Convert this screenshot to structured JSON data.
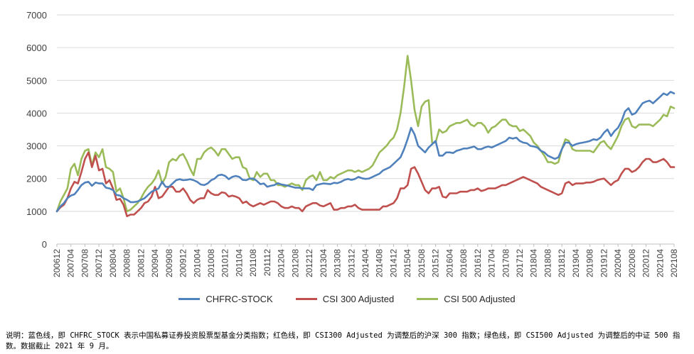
{
  "chart_data": {
    "type": "line",
    "title": "",
    "xlabel": "",
    "ylabel": "",
    "ylim": [
      0,
      7000
    ],
    "yticks": [
      0,
      1000,
      2000,
      3000,
      4000,
      5000,
      6000,
      7000
    ],
    "x_tick_labels": [
      "200612",
      "200704",
      "200708",
      "200712",
      "200804",
      "200808",
      "200812",
      "200904",
      "200908",
      "200912",
      "201004",
      "201008",
      "201012",
      "201104",
      "201108",
      "201112",
      "201204",
      "201208",
      "201212",
      "201304",
      "201308",
      "201312",
      "201404",
      "201408",
      "201412",
      "201504",
      "201508",
      "201512",
      "201604",
      "201608",
      "201612",
      "201704",
      "201708",
      "201712",
      "201804",
      "201808",
      "201812",
      "201904",
      "201908",
      "201912",
      "202004",
      "202008",
      "202012",
      "202104",
      "202108"
    ],
    "grid": "horizontal",
    "legend_position": "bottom",
    "series": [
      {
        "name": "CHFRC-STOCK",
        "color": "#4f81bd",
        "values": [
          1000,
          1150,
          1250,
          1400,
          1480,
          1520,
          1650,
          1800,
          1880,
          1900,
          1780,
          1880,
          1850,
          1850,
          1720,
          1700,
          1650,
          1500,
          1480,
          1400,
          1350,
          1280,
          1280,
          1300,
          1350,
          1400,
          1500,
          1600,
          1650,
          1700,
          1900,
          1750,
          1750,
          1850,
          1950,
          1980,
          1950,
          1960,
          1980,
          1950,
          1900,
          1820,
          1800,
          1850,
          1950,
          2000,
          2100,
          2120,
          2080,
          1980,
          2050,
          2080,
          2050,
          1960,
          1950,
          2000,
          2000,
          1930,
          1830,
          1850,
          1750,
          1780,
          1800,
          1860,
          1820,
          1800,
          1780,
          1750,
          1720,
          1720,
          1700,
          1700,
          1700,
          1650,
          1800,
          1830,
          1850,
          1840,
          1830,
          1870,
          1860,
          1900,
          1960,
          1990,
          1960,
          1990,
          2050,
          2010,
          1990,
          2000,
          2050,
          2100,
          2150,
          2250,
          2300,
          2350,
          2450,
          2550,
          2650,
          2900,
          3200,
          3550,
          3350,
          3000,
          2900,
          2800,
          2950,
          3050,
          3150,
          2700,
          2700,
          2800,
          2800,
          2780,
          2850,
          2880,
          2920,
          2920,
          2950,
          2980,
          2900,
          2900,
          2950,
          2980,
          2950,
          3000,
          3050,
          3100,
          3150,
          3250,
          3220,
          3250,
          3150,
          3100,
          3080,
          3000,
          2980,
          2950,
          2850,
          2800,
          2700,
          2650,
          2600,
          2650,
          2900,
          3100,
          3100,
          3000,
          3050,
          3080,
          3100,
          3120,
          3150,
          3200,
          3180,
          3250,
          3400,
          3500,
          3300,
          3450,
          3550,
          3750,
          4050,
          4150,
          3950,
          4000,
          4150,
          4300,
          4350,
          4380,
          4300,
          4400,
          4500,
          4600,
          4550,
          4650,
          4600
        ]
      },
      {
        "name": "CSI 300 Adjusted",
        "color": "#c0504d",
        "values": [
          1000,
          1120,
          1200,
          1400,
          1700,
          1900,
          1850,
          2200,
          2600,
          2800,
          2350,
          2700,
          2250,
          2300,
          1850,
          1950,
          1700,
          1350,
          1380,
          1200,
          850,
          900,
          900,
          1000,
          1100,
          1250,
          1300,
          1450,
          1750,
          1400,
          1450,
          1600,
          1750,
          1750,
          1600,
          1600,
          1700,
          1550,
          1350,
          1250,
          1350,
          1400,
          1400,
          1650,
          1550,
          1500,
          1500,
          1580,
          1560,
          1450,
          1480,
          1450,
          1400,
          1250,
          1300,
          1200,
          1150,
          1200,
          1250,
          1200,
          1250,
          1300,
          1300,
          1250,
          1150,
          1100,
          1100,
          1150,
          1100,
          1100,
          1000,
          1150,
          1200,
          1250,
          1250,
          1180,
          1150,
          1200,
          1250,
          1050,
          1050,
          1100,
          1100,
          1150,
          1150,
          1200,
          1100,
          1050,
          1050,
          1050,
          1050,
          1050,
          1050,
          1150,
          1150,
          1200,
          1250,
          1400,
          1700,
          1700,
          1800,
          2300,
          2350,
          2150,
          1900,
          1650,
          1550,
          1700,
          1700,
          1750,
          1450,
          1420,
          1550,
          1550,
          1550,
          1600,
          1600,
          1600,
          1650,
          1650,
          1700,
          1620,
          1650,
          1700,
          1700,
          1700,
          1750,
          1800,
          1800,
          1850,
          1900,
          1950,
          2000,
          2050,
          2000,
          1950,
          1900,
          1850,
          1750,
          1700,
          1650,
          1600,
          1550,
          1500,
          1550,
          1850,
          1900,
          1800,
          1850,
          1850,
          1850,
          1880,
          1880,
          1900,
          1950,
          1980,
          2000,
          1900,
          1800,
          1900,
          1950,
          2150,
          2300,
          2300,
          2200,
          2250,
          2350,
          2500,
          2600,
          2600,
          2500,
          2500,
          2550,
          2600,
          2500,
          2350,
          2350
        ]
      },
      {
        "name": "CSI 500 Adjusted",
        "color": "#9bbb59",
        "values": [
          1000,
          1300,
          1500,
          1700,
          2300,
          2450,
          2100,
          2600,
          2850,
          2900,
          2400,
          2800,
          2650,
          2900,
          2350,
          2300,
          2200,
          1600,
          1700,
          1400,
          1000,
          1050,
          1150,
          1250,
          1400,
          1600,
          1750,
          1850,
          2000,
          2250,
          1850,
          2050,
          2500,
          2600,
          2550,
          2700,
          2750,
          2550,
          2300,
          2100,
          2600,
          2600,
          2800,
          2900,
          2950,
          2850,
          2700,
          2900,
          2900,
          2750,
          2600,
          2650,
          2650,
          2350,
          2300,
          2000,
          1950,
          2200,
          2050,
          2150,
          2150,
          1950,
          1950,
          1800,
          1800,
          1750,
          1800,
          1850,
          1800,
          1800,
          1650,
          1950,
          2050,
          2100,
          1950,
          2200,
          1950,
          1950,
          2050,
          2000,
          2100,
          2150,
          2200,
          2250,
          2250,
          2200,
          2250,
          2200,
          2250,
          2300,
          2400,
          2600,
          2800,
          2900,
          3000,
          3150,
          3250,
          3500,
          4000,
          4800,
          5750,
          5000,
          4100,
          3600,
          4200,
          4350,
          4400,
          3100,
          3100,
          3500,
          3400,
          3450,
          3600,
          3650,
          3700,
          3700,
          3750,
          3800,
          3650,
          3600,
          3700,
          3700,
          3600,
          3400,
          3550,
          3600,
          3700,
          3800,
          3800,
          3650,
          3600,
          3600,
          3450,
          3500,
          3400,
          3300,
          3100,
          3000,
          2850,
          2700,
          2500,
          2500,
          2450,
          2500,
          2900,
          3200,
          3150,
          2900,
          2850,
          2850,
          2850,
          2850,
          2850,
          2800,
          2950,
          3100,
          3150,
          3000,
          2900,
          3100,
          3300,
          3600,
          3800,
          3850,
          3600,
          3550,
          3650,
          3650,
          3650,
          3650,
          3600,
          3700,
          3800,
          3950,
          3900,
          4200,
          4150
        ]
      }
    ]
  },
  "note": "说明：蓝色线，即 CHFRC_STOCK 表示中国私募证券投资股票型基金分类指数；红色线，即 CSI300 Adjusted 为调整后的沪深 300 指数；绿色线，即 CSI500 Adjusted 为调整后的中证 500 指数。数据截止 2021 年 9 月。"
}
